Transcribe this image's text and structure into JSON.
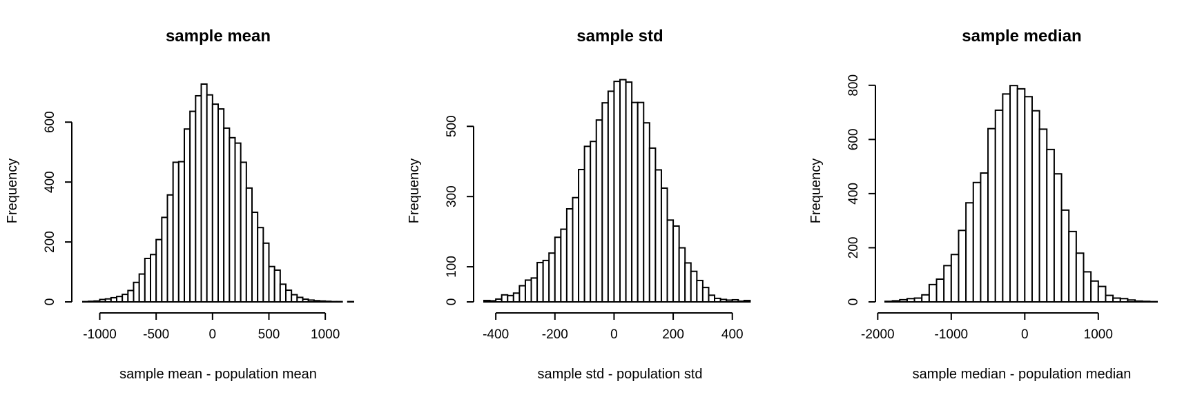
{
  "chart_data": [
    {
      "type": "bar",
      "subtype": "histogram",
      "title": "sample mean",
      "xlabel": "sample mean - population mean",
      "ylabel": "Frequency",
      "xlim": [
        -1150,
        1250
      ],
      "ylim": [
        0,
        750
      ],
      "xticks": [
        -1000,
        -500,
        0,
        500,
        1000
      ],
      "yticks": [
        0,
        200,
        400,
        600
      ],
      "bin_width": 50,
      "bin_start": -1150,
      "counts": [
        1,
        2,
        3,
        8,
        10,
        14,
        18,
        25,
        38,
        65,
        93,
        145,
        158,
        208,
        282,
        357,
        466,
        468,
        577,
        636,
        688,
        727,
        691,
        660,
        644,
        580,
        548,
        530,
        466,
        380,
        299,
        248,
        196,
        118,
        106,
        59,
        39,
        24,
        15,
        9,
        6,
        4,
        3,
        2,
        1,
        1,
        0,
        1
      ],
      "grid": false,
      "legend": "none"
    },
    {
      "type": "bar",
      "subtype": "histogram",
      "title": "sample std",
      "xlabel": "sample std - population std",
      "ylabel": "Frequency",
      "xlim": [
        -440,
        480
      ],
      "ylim": [
        0,
        640
      ],
      "xticks": [
        -400,
        -200,
        0,
        200,
        400
      ],
      "yticks": [
        0,
        100,
        300,
        500
      ],
      "bin_width": 20,
      "bin_start": -440,
      "counts": [
        4,
        3,
        8,
        20,
        18,
        25,
        46,
        62,
        68,
        112,
        118,
        139,
        184,
        207,
        265,
        297,
        377,
        443,
        457,
        518,
        567,
        600,
        628,
        633,
        626,
        568,
        568,
        510,
        438,
        376,
        324,
        233,
        216,
        154,
        111,
        87,
        61,
        41,
        19,
        10,
        7,
        5,
        6,
        2,
        4,
        0
      ],
      "grid": false,
      "legend": "none"
    },
    {
      "type": "bar",
      "subtype": "histogram",
      "title": "sample median",
      "xlabel": "sample median - population median",
      "ylabel": "Frequency",
      "xlim": [
        -1900,
        1800
      ],
      "ylim": [
        0,
        830
      ],
      "xticks": [
        -2000,
        -1000,
        0,
        1000
      ],
      "yticks": [
        0,
        200,
        400,
        600,
        800
      ],
      "bin_width": 100,
      "bin_start": -1900,
      "counts": [
        2,
        4,
        8,
        12,
        14,
        26,
        64,
        84,
        134,
        175,
        264,
        366,
        441,
        476,
        640,
        708,
        768,
        799,
        787,
        758,
        706,
        638,
        563,
        473,
        339,
        260,
        180,
        111,
        77,
        57,
        24,
        14,
        12,
        7,
        3,
        2,
        1
      ],
      "grid": false,
      "legend": "none"
    }
  ]
}
